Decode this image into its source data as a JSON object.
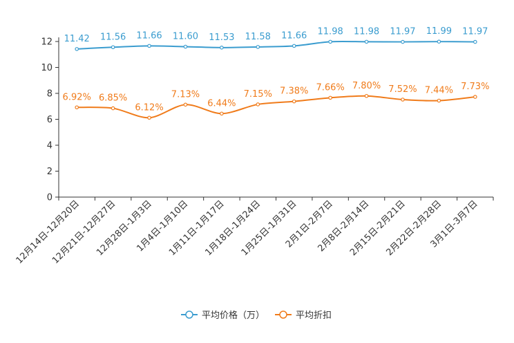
{
  "chart_data": {
    "type": "line",
    "categories": [
      "12月14日-12月20日",
      "12月21日-12月27日",
      "12月28日-1月3日",
      "1月4日-1月10日",
      "1月11日-1月17日",
      "1月18日-1月24日",
      "1月25日-1月31日",
      "2月1日-2月7日",
      "2月8日-2月14日",
      "2月15日-2月21日",
      "2月22日-2月28日",
      "3月1日-3月7日"
    ],
    "series": [
      {
        "name": "平均价格（万）",
        "color": "#3a9ccf",
        "values": [
          11.42,
          11.56,
          11.66,
          11.6,
          11.53,
          11.58,
          11.66,
          11.98,
          11.98,
          11.97,
          11.99,
          11.97
        ],
        "labels": [
          "11.42",
          "11.56",
          "11.66",
          "11.60",
          "11.53",
          "11.58",
          "11.66",
          "11.98",
          "11.98",
          "11.97",
          "11.99",
          "11.97"
        ]
      },
      {
        "name": "平均折扣",
        "color": "#f07b1a",
        "values": [
          6.92,
          6.85,
          6.12,
          7.13,
          6.44,
          7.15,
          7.38,
          7.66,
          7.8,
          7.52,
          7.44,
          7.73
        ],
        "labels": [
          "6.92%",
          "6.85%",
          "6.12%",
          "7.13%",
          "6.44%",
          "7.15%",
          "7.38%",
          "7.66%",
          "7.80%",
          "7.52%",
          "7.44%",
          "7.73%"
        ]
      }
    ],
    "yticks": [
      "0",
      "2",
      "4",
      "6",
      "8",
      "10",
      "12"
    ],
    "ylim": [
      0,
      12
    ],
    "title": "",
    "xlabel": "",
    "ylabel": "",
    "legend_position": "bottom-center"
  }
}
